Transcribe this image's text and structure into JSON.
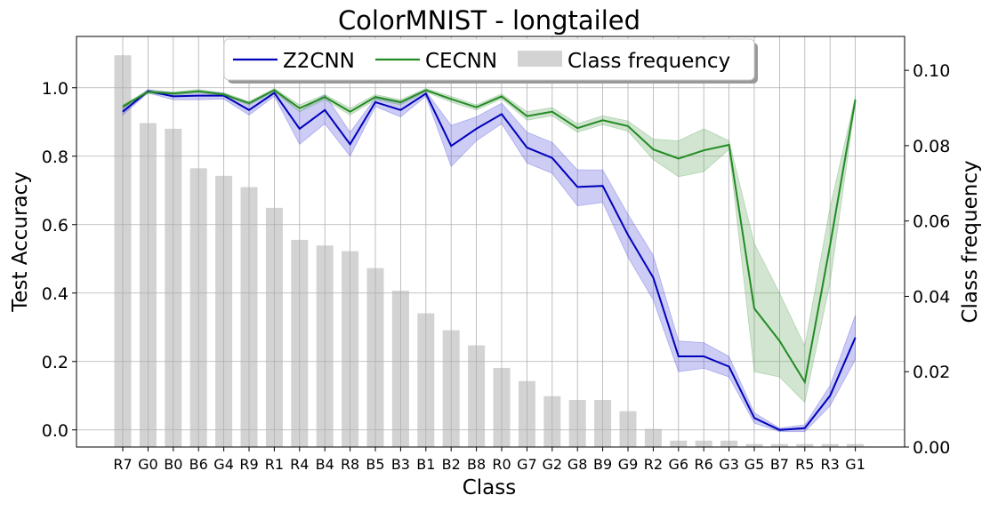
{
  "chart_data": {
    "type": "line",
    "title": "ColorMNIST - longtailed",
    "xlabel": "Class",
    "ylabel": "Test Accuracy",
    "y2label": "Class frequency",
    "ylim": [
      -0.05,
      1.15
    ],
    "y2lim": [
      0.0,
      0.109
    ],
    "yticks": [
      0.0,
      0.2,
      0.4,
      0.6,
      0.8,
      1.0
    ],
    "y2ticks": [
      0.0,
      0.02,
      0.04,
      0.06,
      0.08,
      0.1
    ],
    "y2tick_labels": [
      "0.00",
      "0.02",
      "0.04",
      "0.06",
      "0.08",
      "0.10"
    ],
    "grid": true,
    "legend_placement": "top-center",
    "categories": [
      "R7",
      "G0",
      "B0",
      "B6",
      "G4",
      "R9",
      "R1",
      "R4",
      "B4",
      "R8",
      "B5",
      "B3",
      "B1",
      "B2",
      "B8",
      "R0",
      "G7",
      "G2",
      "G8",
      "B9",
      "G9",
      "R2",
      "G6",
      "R6",
      "G3",
      "G5",
      "B7",
      "R5",
      "R3",
      "G1"
    ],
    "series": [
      {
        "name": "Z2CNN",
        "kind": "line",
        "axis": "left",
        "color": "#0000bb",
        "band_color": "#5555dd",
        "values": [
          0.93,
          0.99,
          0.975,
          0.977,
          0.977,
          0.935,
          0.985,
          0.88,
          0.935,
          0.835,
          0.958,
          0.935,
          0.983,
          0.83,
          0.88,
          0.923,
          0.825,
          0.795,
          0.71,
          0.713,
          0.57,
          0.445,
          0.215,
          0.215,
          0.185,
          0.035,
          0.0,
          0.005,
          0.1,
          0.27
        ],
        "lower": [
          0.92,
          0.985,
          0.965,
          0.965,
          0.967,
          0.92,
          0.975,
          0.835,
          0.895,
          0.8,
          0.945,
          0.915,
          0.975,
          0.77,
          0.845,
          0.895,
          0.78,
          0.75,
          0.655,
          0.665,
          0.505,
          0.38,
          0.17,
          0.18,
          0.155,
          0.02,
          -0.005,
          -0.005,
          0.07,
          0.205
        ],
        "upper": [
          0.94,
          0.995,
          0.985,
          0.99,
          0.985,
          0.95,
          0.995,
          0.93,
          0.98,
          0.87,
          0.97,
          0.955,
          0.99,
          0.89,
          0.915,
          0.955,
          0.87,
          0.84,
          0.76,
          0.76,
          0.63,
          0.51,
          0.26,
          0.255,
          0.215,
          0.05,
          0.005,
          0.015,
          0.13,
          0.335
        ]
      },
      {
        "name": "CECNN",
        "kind": "line",
        "axis": "left",
        "color": "#228b22",
        "band_color": "#66aa66",
        "values": [
          0.945,
          0.988,
          0.983,
          0.99,
          0.98,
          0.955,
          0.993,
          0.94,
          0.973,
          0.93,
          0.973,
          0.958,
          0.993,
          0.967,
          0.943,
          0.975,
          0.917,
          0.93,
          0.882,
          0.905,
          0.888,
          0.82,
          0.793,
          0.817,
          0.833,
          0.355,
          0.26,
          0.14,
          0.54,
          0.965
        ],
        "lower": [
          0.94,
          0.983,
          0.978,
          0.985,
          0.975,
          0.95,
          0.988,
          0.93,
          0.965,
          0.92,
          0.965,
          0.95,
          0.988,
          0.958,
          0.935,
          0.968,
          0.905,
          0.918,
          0.87,
          0.892,
          0.873,
          0.79,
          0.74,
          0.755,
          0.82,
          0.17,
          0.155,
          0.08,
          0.43,
          0.955
        ],
        "upper": [
          0.95,
          0.993,
          0.988,
          0.995,
          0.985,
          0.96,
          0.998,
          0.95,
          0.98,
          0.94,
          0.98,
          0.965,
          0.998,
          0.975,
          0.95,
          0.982,
          0.93,
          0.942,
          0.895,
          0.918,
          0.903,
          0.85,
          0.845,
          0.88,
          0.845,
          0.545,
          0.4,
          0.245,
          0.65,
          0.975
        ]
      },
      {
        "name": "Class frequency",
        "kind": "bar",
        "axis": "right",
        "color": "#d3d3d3",
        "values": [
          0.104,
          0.086,
          0.0845,
          0.074,
          0.072,
          0.069,
          0.0635,
          0.055,
          0.0535,
          0.052,
          0.0475,
          0.0415,
          0.0355,
          0.031,
          0.027,
          0.021,
          0.0175,
          0.0135,
          0.0125,
          0.0125,
          0.0095,
          0.0048,
          0.0017,
          0.0017,
          0.0017,
          0.0008,
          0.0008,
          0.0008,
          0.0008,
          0.0008
        ]
      }
    ]
  }
}
